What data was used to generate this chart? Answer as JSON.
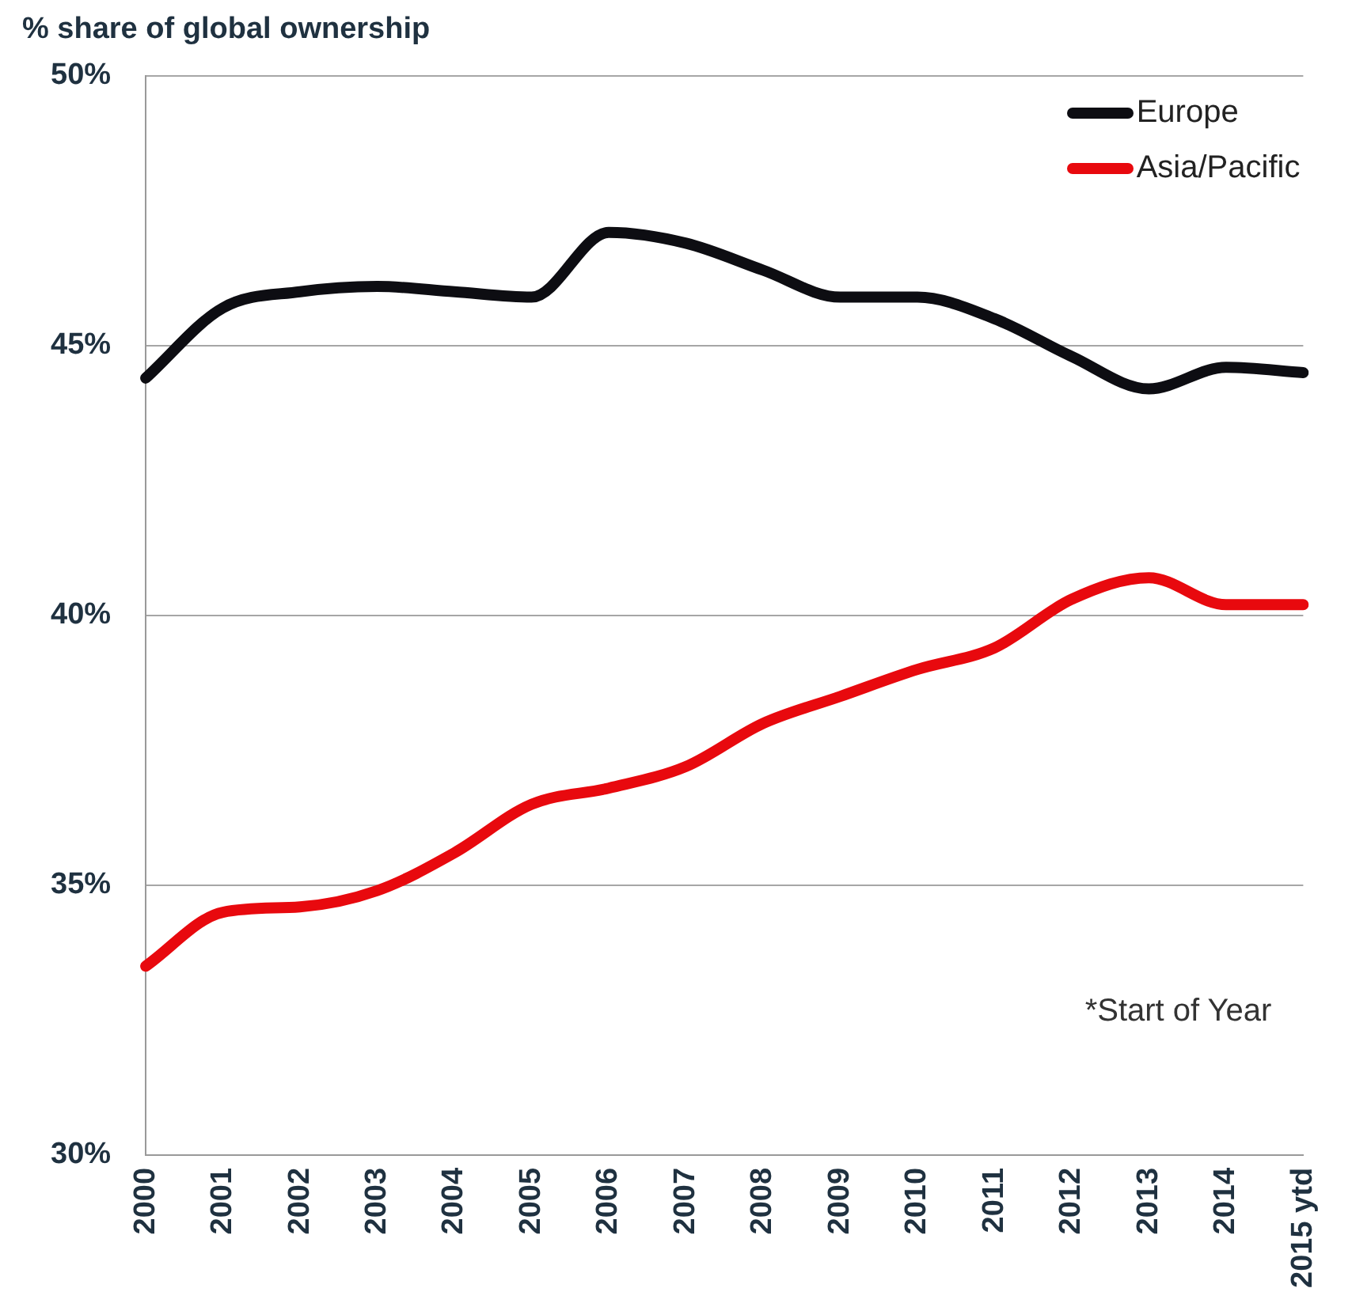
{
  "chart_data": {
    "type": "line",
    "title": "% share of global ownership",
    "categories": [
      "2000",
      "2001",
      "2002",
      "2003",
      "2004",
      "2005",
      "2006",
      "2007",
      "2008",
      "2009",
      "2010",
      "2011",
      "2012",
      "2013",
      "2014",
      "2015 ytd"
    ],
    "series": [
      {
        "name": "Europe",
        "color": "#0d0d12",
        "values": [
          44.4,
          45.7,
          46.0,
          46.1,
          46.0,
          45.9,
          47.1,
          46.9,
          46.4,
          45.9,
          45.9,
          45.5,
          44.8,
          44.2,
          44.6,
          44.5
        ]
      },
      {
        "name": "Asia/Pacific",
        "color": "#e8090e",
        "values": [
          33.5,
          34.5,
          34.6,
          34.9,
          35.6,
          36.5,
          36.8,
          37.2,
          38.0,
          38.5,
          39.0,
          39.4,
          40.3,
          40.7,
          40.2,
          40.2
        ]
      }
    ],
    "ylim": [
      30,
      50
    ],
    "yticks": [
      {
        "value": 30,
        "label": "30%"
      },
      {
        "value": 35,
        "label": "35%"
      },
      {
        "value": 40,
        "label": "40%"
      },
      {
        "value": 45,
        "label": "45%"
      },
      {
        "value": 50,
        "label": "50%"
      }
    ],
    "grid": "y",
    "legend": "top right",
    "marker": "none",
    "line_style": "solid",
    "annotations": [
      "*Start of Year"
    ]
  }
}
